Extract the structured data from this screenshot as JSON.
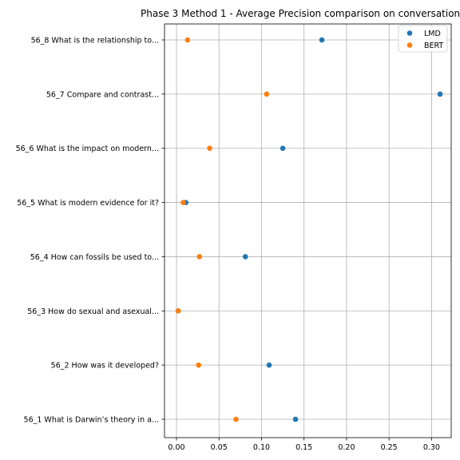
{
  "chart_data": {
    "type": "scatter",
    "title": "Phase 3 Method 1 - Average Precision comparison on conversation",
    "xlabel": "",
    "ylabel": "",
    "xlim": [
      -0.015,
      0.325
    ],
    "x_ticks": [
      "0.00",
      "0.05",
      "0.10",
      "0.15",
      "0.20",
      "0.25",
      "0.30"
    ],
    "x_tick_values": [
      0,
      0.05,
      0.1,
      0.15,
      0.2,
      0.25,
      0.3
    ],
    "grid": true,
    "legend_position": "top-right",
    "categories": [
      "56_1 What is Darwin’s theory in a...",
      "56_2 How was it developed?",
      "56_3 How do sexual and asexual...",
      "56_4 How can fossils be used to...",
      "56_5 What is modern evidence for it?",
      "56_6 What is the impact on modern...",
      "56_7 Compare and contrast...",
      "56_8 What is the relationship to..."
    ],
    "series": [
      {
        "name": "LMD",
        "color": "#1f77b4",
        "values": [
          0.14,
          0.109,
          0.002,
          0.081,
          0.011,
          0.125,
          0.31,
          0.171
        ]
      },
      {
        "name": "BERT",
        "color": "#ff7f0e",
        "values": [
          0.07,
          0.026,
          0.002,
          0.027,
          0.008,
          0.039,
          0.106,
          0.013
        ]
      }
    ]
  }
}
